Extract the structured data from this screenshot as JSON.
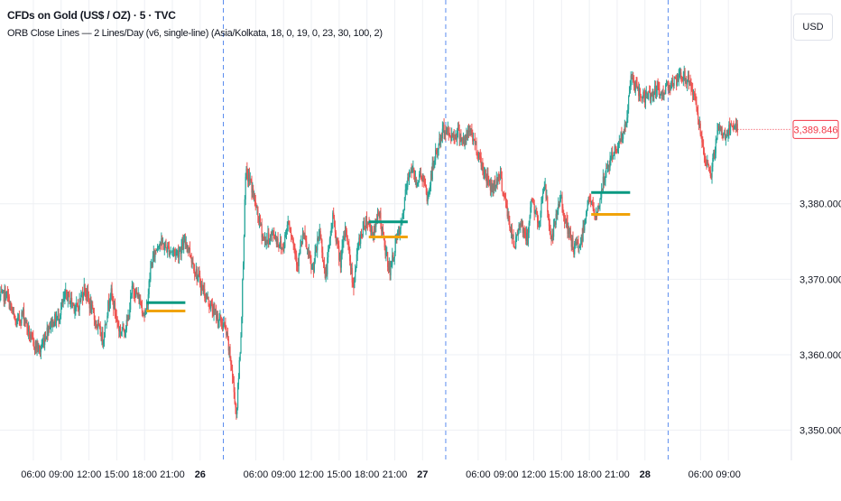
{
  "header": {
    "title": "CFDs on Gold (US$ / OZ) · 5 · TVC",
    "indicator": "ORB Close Lines — 2 Lines/Day (v6, single-line) (Asia/Kolkata, 18, 0, 19, 0, 23, 30, 100, 2)"
  },
  "price_scale": {
    "currency": "USD",
    "current_price_label": "3,389.846"
  },
  "colors": {
    "up": "#26a69a",
    "down": "#ef5350",
    "orb_high_line": "#089981",
    "orb_low_line": "#f0a30a",
    "price_label": "#f23645",
    "session_divider": "#5b8def",
    "grid": "#eef0f4"
  },
  "chart_data": {
    "type": "candlestick",
    "title": "CFDs on Gold (US$ / OZ) · 5 · TVC",
    "ylim": [
      3346,
      3407
    ],
    "y_ticks": [
      3350,
      3360,
      3370,
      3380
    ],
    "y_tick_labels": [
      "3,350.000",
      "3,360.000",
      "3,370.000",
      "3,380.000"
    ],
    "x_tick_labels": [
      "06:00",
      "09:00",
      "12:00",
      "15:00",
      "18:00",
      "21:00",
      "26",
      "06:00",
      "09:00",
      "12:00",
      "15:00",
      "18:00",
      "21:00",
      "27",
      "06:00",
      "09:00",
      "12:00",
      "15:00",
      "18:00",
      "21:00",
      "28",
      "06:00",
      "09:00"
    ],
    "x_tick_hours": [
      6,
      9,
      12,
      15,
      18,
      21,
      24,
      30,
      33,
      36,
      39,
      42,
      45,
      48,
      54,
      57,
      60,
      63,
      66,
      69,
      72,
      78,
      81
    ],
    "x_range_hours": [
      2.4,
      87.8
    ],
    "session_dividers_hours": [
      26.5,
      50.5,
      74.5
    ],
    "price_anchors": [
      [
        2.4,
        3367.5
      ],
      [
        3.2,
        3368
      ],
      [
        4.2,
        3364
      ],
      [
        5,
        3365.5
      ],
      [
        5.8,
        3362
      ],
      [
        6.8,
        3360.5
      ],
      [
        7.8,
        3364
      ],
      [
        8.8,
        3365
      ],
      [
        9.6,
        3368
      ],
      [
        10.8,
        3366
      ],
      [
        11.6,
        3369
      ],
      [
        12.6,
        3365
      ],
      [
        13.6,
        3362
      ],
      [
        14.4,
        3368.5
      ],
      [
        15.4,
        3363
      ],
      [
        16.2,
        3364
      ],
      [
        16.8,
        3369
      ],
      [
        17.6,
        3367
      ],
      [
        18.2,
        3365
      ],
      [
        18.8,
        3372
      ],
      [
        19.6,
        3375
      ],
      [
        20.6,
        3374
      ],
      [
        21.6,
        3373.5
      ],
      [
        22.6,
        3375
      ],
      [
        23.6,
        3371
      ],
      [
        24.6,
        3368
      ],
      [
        25.4,
        3366
      ],
      [
        26.2,
        3364.5
      ],
      [
        26.8,
        3363.5
      ],
      [
        27.4,
        3359
      ],
      [
        28,
        3352
      ],
      [
        28.5,
        3363
      ],
      [
        29,
        3384
      ],
      [
        29.5,
        3383
      ],
      [
        30.2,
        3379
      ],
      [
        31,
        3375
      ],
      [
        32,
        3376
      ],
      [
        33,
        3374
      ],
      [
        33.6,
        3378
      ],
      [
        34.6,
        3372
      ],
      [
        35.2,
        3376
      ],
      [
        36.2,
        3371
      ],
      [
        37,
        3376.5
      ],
      [
        37.6,
        3370
      ],
      [
        38.4,
        3378.5
      ],
      [
        39.2,
        3372
      ],
      [
        39.8,
        3377
      ],
      [
        40.6,
        3369
      ],
      [
        41.2,
        3375
      ],
      [
        42,
        3378
      ],
      [
        42.8,
        3376
      ],
      [
        43.4,
        3379
      ],
      [
        44,
        3374
      ],
      [
        44.6,
        3371
      ],
      [
        45.2,
        3375
      ],
      [
        45.8,
        3377
      ],
      [
        46.2,
        3381
      ],
      [
        46.8,
        3385
      ],
      [
        47.4,
        3383
      ],
      [
        48,
        3384
      ],
      [
        48.6,
        3380.5
      ],
      [
        49.2,
        3385
      ],
      [
        49.6,
        3387
      ],
      [
        50.4,
        3390
      ],
      [
        51.2,
        3389
      ],
      [
        52,
        3389.5
      ],
      [
        52.6,
        3388
      ],
      [
        53.2,
        3390
      ],
      [
        54,
        3387
      ],
      [
        54.8,
        3384
      ],
      [
        55.6,
        3382
      ],
      [
        56.4,
        3384
      ],
      [
        57.2,
        3379
      ],
      [
        58,
        3374
      ],
      [
        58.6,
        3378
      ],
      [
        59.4,
        3375
      ],
      [
        59.8,
        3381
      ],
      [
        60.6,
        3377
      ],
      [
        61.2,
        3383
      ],
      [
        62,
        3375
      ],
      [
        63,
        3381
      ],
      [
        63.6,
        3377
      ],
      [
        64.4,
        3374
      ],
      [
        65.2,
        3375
      ],
      [
        66,
        3381
      ],
      [
        66.8,
        3378
      ],
      [
        67.6,
        3383
      ],
      [
        68.4,
        3386
      ],
      [
        69.2,
        3388
      ],
      [
        70,
        3390
      ],
      [
        70.6,
        3397
      ],
      [
        71.2,
        3395
      ],
      [
        72,
        3394
      ],
      [
        72.6,
        3394.5
      ],
      [
        73.2,
        3395
      ],
      [
        74,
        3394.5
      ],
      [
        74.6,
        3396
      ],
      [
        75.4,
        3396
      ],
      [
        76.2,
        3397
      ],
      [
        77,
        3396
      ],
      [
        77.8,
        3392
      ],
      [
        78.4,
        3386
      ],
      [
        79.2,
        3384
      ],
      [
        80,
        3390
      ],
      [
        80.6,
        3389
      ],
      [
        81.4,
        3390
      ],
      [
        82,
        3389.8
      ]
    ],
    "orb_levels": [
      {
        "start_hour": 18.2,
        "end_hour": 22.4,
        "high": 3366.9,
        "low": 3365.8
      },
      {
        "start_hour": 42.2,
        "end_hour": 46.4,
        "high": 3377.6,
        "low": 3375.6
      },
      {
        "start_hour": 66.2,
        "end_hour": 70.4,
        "high": 3381.5,
        "low": 3378.6
      }
    ],
    "last_price": 3389.846,
    "grid": true
  }
}
